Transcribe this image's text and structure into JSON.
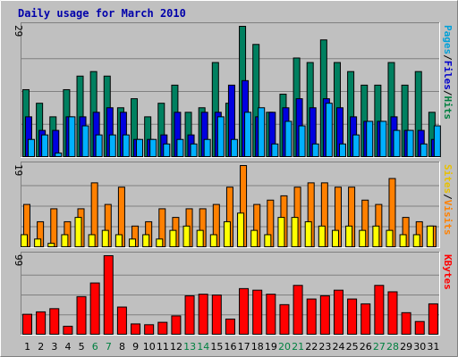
{
  "chart_data": {
    "type": "bar",
    "title": "Daily usage for March 2010",
    "categories": [
      "1",
      "2",
      "3",
      "4",
      "5",
      "6",
      "7",
      "8",
      "9",
      "10",
      "11",
      "12",
      "13",
      "14",
      "15",
      "16",
      "17",
      "18",
      "19",
      "20",
      "21",
      "22",
      "23",
      "24",
      "25",
      "26",
      "27",
      "28",
      "29",
      "30",
      "31"
    ],
    "weekend_days": [
      "6",
      "7",
      "13",
      "14",
      "20",
      "21",
      "27",
      "28"
    ],
    "panels": [
      {
        "scale_label": "29",
        "ylim": [
          0,
          29
        ],
        "side_label": [
          {
            "text": "Pages",
            "color": "#00a0d8"
          },
          {
            "text": "/",
            "color": "#000000"
          },
          {
            "text": "Files",
            "color": "#0000cc"
          },
          {
            "text": "/",
            "color": "#000000"
          },
          {
            "text": "Hits",
            "color": "#008040"
          }
        ],
        "series": [
          {
            "name": "Hits",
            "color": "#008060",
            "values": [
              15,
              12,
              9,
              15,
              18,
              19,
              18,
              11,
              13,
              9,
              12,
              16,
              10,
              11,
              21,
              12,
              29,
              25,
              10,
              14,
              22,
              21,
              26,
              21,
              19,
              16,
              16,
              21,
              16,
              19,
              10
            ]
          },
          {
            "name": "Files",
            "color": "#0000e0",
            "values": [
              9,
              6,
              6,
              9,
              9,
              10,
              11,
              10,
              4,
              4,
              5,
              10,
              5,
              10,
              10,
              16,
              17,
              9,
              10,
              11,
              13,
              11,
              13,
              11,
              9,
              8,
              8,
              9,
              6,
              6,
              4
            ]
          },
          {
            "name": "Pages",
            "color": "#00b0ff",
            "values": [
              4,
              5,
              1,
              9,
              7,
              5,
              5,
              5,
              4,
              4,
              3,
              4,
              3,
              4,
              9,
              4,
              10,
              11,
              3,
              8,
              7,
              3,
              12,
              3,
              5,
              8,
              8,
              6,
              6,
              3,
              7
            ]
          }
        ]
      },
      {
        "scale_label": "19",
        "ylim": [
          0,
          19
        ],
        "side_label": [
          {
            "text": "Sites",
            "color": "#e8c000"
          },
          {
            "text": "/",
            "color": "#000000"
          },
          {
            "text": "Visits",
            "color": "#ff8000"
          }
        ],
        "series": [
          {
            "name": "Visits",
            "color": "#ff8000",
            "values": [
              10,
              6,
              9,
              6,
              9,
              15,
              10,
              14,
              5,
              6,
              9,
              7,
              9,
              9,
              10,
              14,
              19,
              10,
              11,
              12,
              14,
              15,
              15,
              14,
              14,
              11,
              10,
              16,
              7,
              6,
              5
            ]
          },
          {
            "name": "Sites",
            "color": "#ffff00",
            "values": [
              3,
              2,
              1,
              3,
              7,
              3,
              4,
              3,
              2,
              3,
              2,
              4,
              5,
              4,
              3,
              6,
              8,
              4,
              3,
              7,
              7,
              6,
              5,
              4,
              5,
              4,
              5,
              4,
              3,
              3,
              5
            ]
          }
        ]
      },
      {
        "scale_label": "99",
        "ylim": [
          0,
          99
        ],
        "side_label": [
          {
            "text": "KBytes",
            "color": "#ff0000"
          }
        ],
        "series": [
          {
            "name": "KBytes",
            "color": "#ff0000",
            "values": [
              26,
              29,
              33,
              11,
              48,
              65,
              99,
              35,
              14,
              13,
              16,
              24,
              49,
              51,
              50,
              20,
              58,
              56,
              51,
              38,
              62,
              45,
              49,
              56,
              45,
              39,
              62,
              54,
              28,
              17,
              39
            ]
          }
        ]
      }
    ]
  }
}
